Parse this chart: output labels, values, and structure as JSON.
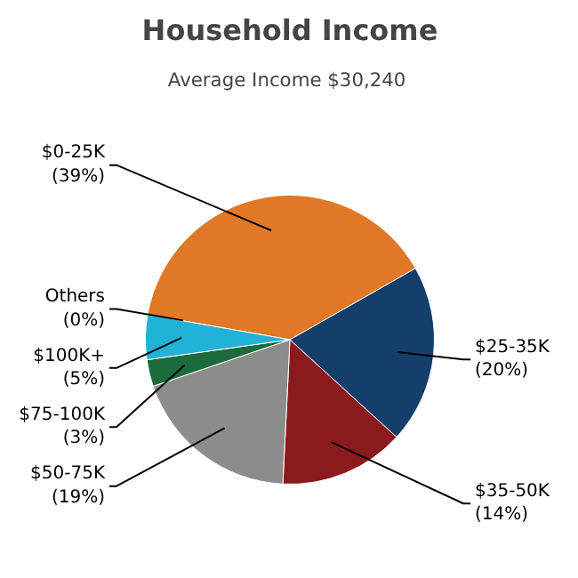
{
  "chart_data": {
    "type": "pie",
    "title": "Household Income",
    "subtitle": "Average Income  $30,240",
    "categories": [
      "$0-25K",
      "$25-35K",
      "$35-50K",
      "$50-75K",
      "$75-100K",
      "$100K+",
      "Others"
    ],
    "values": [
      39,
      20,
      14,
      19,
      3,
      5,
      0
    ],
    "value_labels": [
      "(39%)",
      "(20%)",
      "(14%)",
      "(19%)",
      "(3%)",
      "(5%)",
      "(0%)"
    ],
    "colors": [
      "#e07828",
      "#143f6b",
      "#8a1a1c",
      "#8c8c8c",
      "#1b6b3c",
      "#22b2d8",
      "#c0c0c0"
    ]
  }
}
